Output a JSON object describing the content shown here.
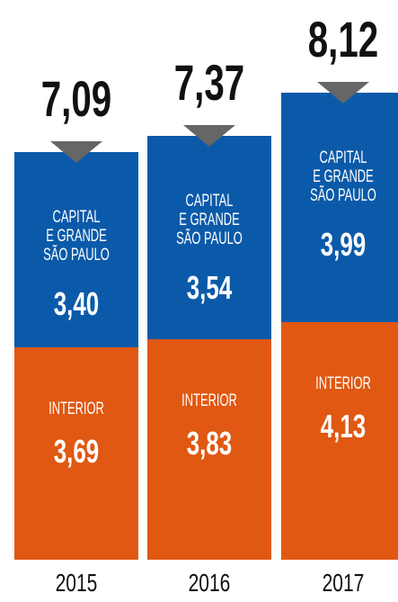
{
  "chart_data": {
    "type": "stacked-bar",
    "categories": [
      "2015",
      "2016",
      "2017"
    ],
    "series": [
      {
        "name": "INTERIOR",
        "color": "#e05812",
        "values": [
          3.69,
          3.83,
          4.13
        ],
        "value_labels": [
          "3,69",
          "3,83",
          "4,13"
        ]
      },
      {
        "name": "CAPITAL\nE GRANDE\nSÃO PAULO",
        "color": "#0b5aa9",
        "values": [
          3.4,
          3.54,
          3.99
        ],
        "value_labels": [
          "3,40",
          "3,54",
          "3,99"
        ]
      }
    ],
    "totals": {
      "values": [
        7.09,
        7.37,
        8.12
      ],
      "value_labels": [
        "7,09",
        "7,37",
        "8,12"
      ],
      "marker_color": "#666666"
    }
  }
}
